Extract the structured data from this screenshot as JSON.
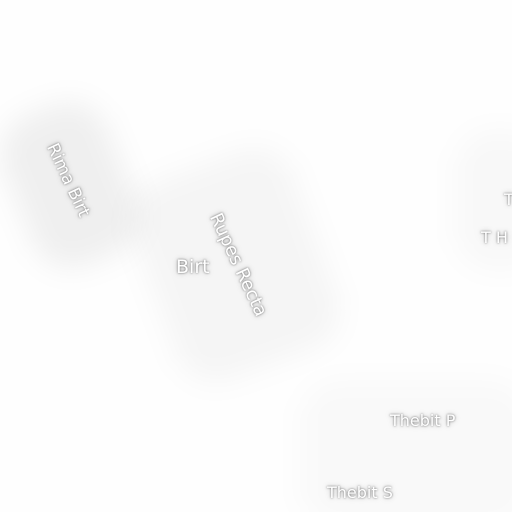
{
  "map": {
    "labels": {
      "rima_birt": "Rima Birt",
      "birt": "Birt",
      "rupes_recta": "Rupes Recta",
      "thebit_p": "Thebit P",
      "thebit_s": "Thebit S",
      "edge_t": "T",
      "edge_t_h": "T  H"
    },
    "colors": {
      "background": "#fefefe",
      "label_text": "#ffffff",
      "label_halo": "#000000"
    }
  }
}
